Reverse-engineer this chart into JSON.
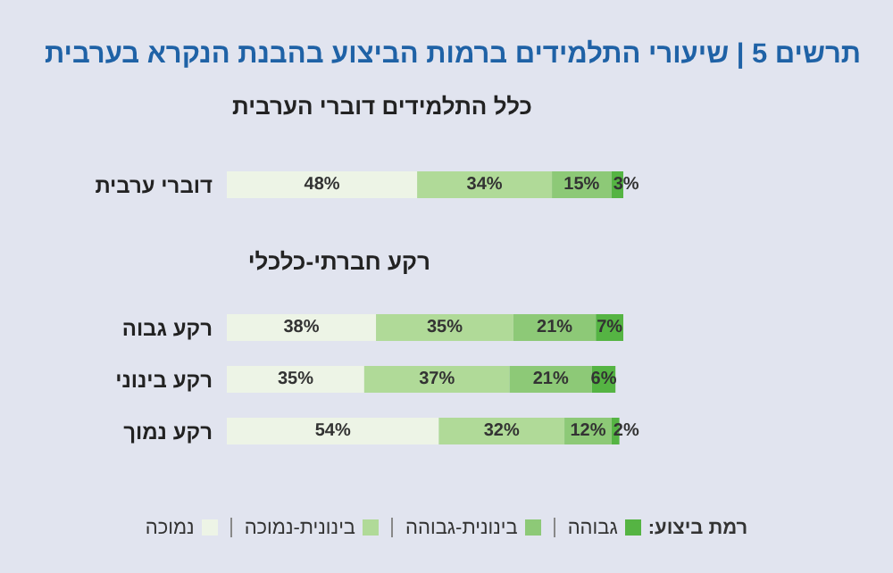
{
  "chart_data": [
    {
      "type": "bar",
      "orientation": "horizontal",
      "stacked": true,
      "title": "תרשים 5 | שיעורי התלמידים ברמות הביצוע בהבנת הנקרא בערבית",
      "subtitle": "כלל התלמידים דוברי הערבית",
      "categories": [
        "דוברי ערבית"
      ],
      "series": [
        {
          "color": "#edf4e6",
          "values": [
            48
          ],
          "value_labels": [
            "48%"
          ]
        },
        {
          "color": "#b0da98",
          "values": [
            34
          ],
          "value_labels": [
            "34%"
          ]
        },
        {
          "color": "#8dc977",
          "values": [
            15
          ],
          "value_labels": [
            "15%"
          ]
        },
        {
          "color": "#55b443",
          "values": [
            3
          ],
          "value_labels": [
            "3%"
          ]
        }
      ]
    },
    {
      "type": "bar",
      "orientation": "horizontal",
      "stacked": true,
      "title": "רקע חברתי-כלכלי",
      "categories": [
        "רקע גבוה",
        "רקע בינוני",
        "רקע נמוך"
      ],
      "legend": "bottom",
      "legend_title": "רמת ביצוע:",
      "series": [
        {
          "name": "נמוכה",
          "color": "#edf4e6",
          "values": [
            38,
            35,
            54
          ],
          "value_labels": [
            "38%",
            "35%",
            "54%"
          ]
        },
        {
          "name": "בינונית-נמוכה",
          "color": "#b0da98",
          "values": [
            35,
            37,
            32
          ],
          "value_labels": [
            "35%",
            "37%",
            "32%"
          ]
        },
        {
          "name": "בינונית-גבוהה",
          "color": "#8dc977",
          "values": [
            21,
            21,
            12
          ],
          "value_labels": [
            "21%",
            "21%",
            "12%"
          ]
        },
        {
          "name": "גבוהה",
          "color": "#55b443",
          "values": [
            7,
            6,
            2
          ],
          "value_labels": [
            "7%",
            "6%",
            "2%"
          ]
        }
      ]
    }
  ]
}
